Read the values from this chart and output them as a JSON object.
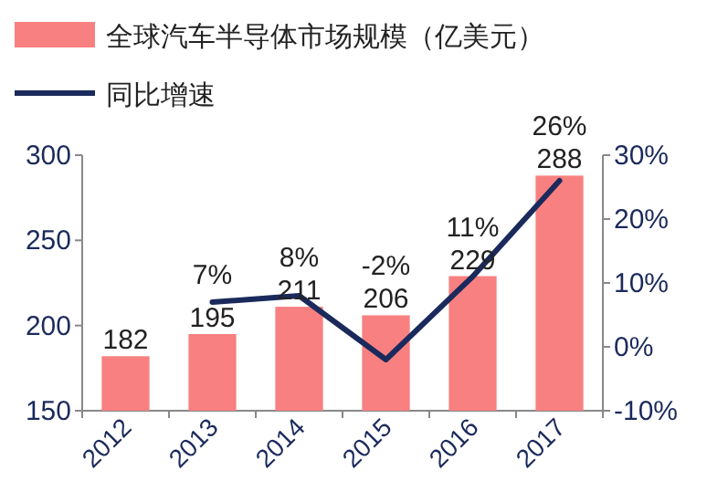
{
  "chart_data": {
    "type": "bar",
    "categories": [
      "2012",
      "2013",
      "2014",
      "2015",
      "2016",
      "2017"
    ],
    "series": [
      {
        "name": "全球汽车半导体市场规模（亿美元）",
        "color": "#f88080",
        "values": [
          182,
          195,
          211,
          206,
          229,
          288
        ],
        "value_labels": [
          "182",
          "195",
          "211",
          "206",
          "229",
          "288"
        ]
      },
      {
        "name": "同比增速",
        "type": "line",
        "axis": "y2",
        "color": "#1b2a5c",
        "values": [
          null,
          7,
          8,
          -2,
          11,
          26
        ],
        "value_labels": [
          null,
          "7%",
          "8%",
          "-2%",
          "11%",
          "26%"
        ]
      }
    ],
    "ylim": [
      150,
      300
    ],
    "yticks": [
      150,
      200,
      250,
      300
    ],
    "y2lim": [
      -10,
      30
    ],
    "y2ticks": [
      {
        "value": -10,
        "label": "-10%"
      },
      {
        "value": 0,
        "label": "0%"
      },
      {
        "value": 10,
        "label": "10%"
      },
      {
        "value": 20,
        "label": "20%"
      },
      {
        "value": 30,
        "label": "30%"
      }
    ],
    "grid": false,
    "legend": "top left",
    "marker": "none",
    "line_style": "solid"
  }
}
